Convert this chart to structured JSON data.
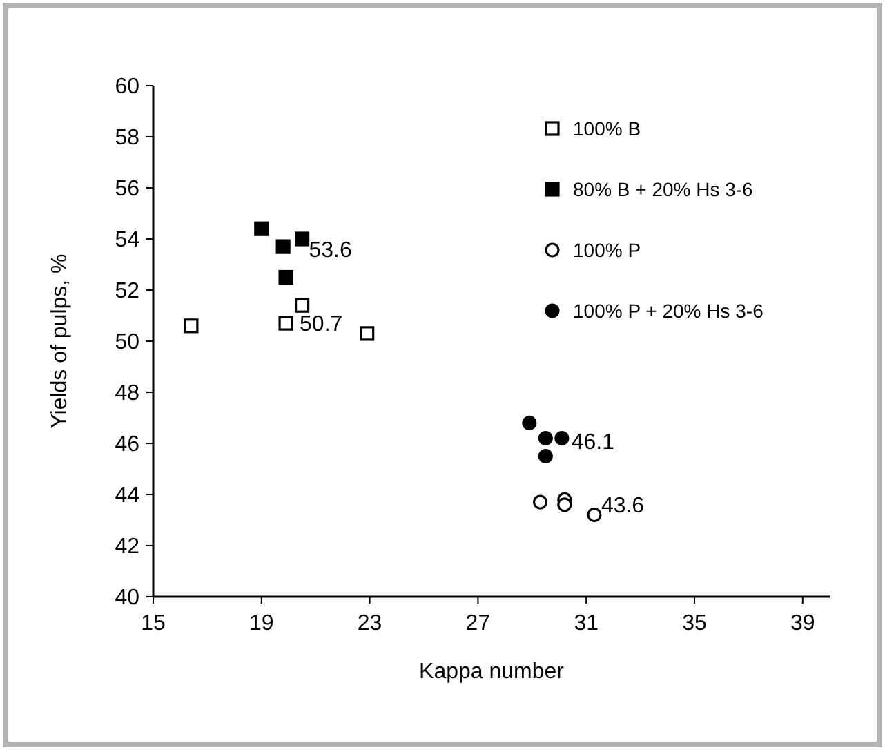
{
  "chart_data": {
    "type": "scatter",
    "xlabel": "Kappa number",
    "ylabel": "Yields of pulps, %",
    "xlim": [
      15,
      40
    ],
    "ylim": [
      40,
      60
    ],
    "xticks": [
      15,
      19,
      23,
      27,
      31,
      35,
      39
    ],
    "yticks": [
      40,
      42,
      44,
      46,
      48,
      50,
      52,
      54,
      56,
      58,
      60
    ],
    "grid": false,
    "legend": "top right",
    "series": [
      {
        "name": "100% B",
        "color": "#ffffff",
        "marker": "square",
        "x": [
          16.4,
          19.9,
          20.5,
          22.9
        ],
        "values": [
          50.6,
          50.7,
          51.4,
          50.3
        ]
      },
      {
        "name": "80% B + 20% Hs 3-6",
        "color": "#000000",
        "marker": "square",
        "x": [
          19.0,
          19.8,
          20.5,
          19.9
        ],
        "values": [
          54.4,
          53.7,
          54.0,
          52.5
        ]
      },
      {
        "name": "100% P",
        "color": "#ffffff",
        "marker": "circle",
        "x": [
          29.3,
          30.2,
          30.2,
          31.3
        ],
        "values": [
          43.7,
          43.8,
          43.6,
          43.2
        ]
      },
      {
        "name": "100% P + 20% Hs 3-6",
        "color": "#000000",
        "marker": "circle",
        "x": [
          28.9,
          29.5,
          30.1,
          29.5
        ],
        "values": [
          46.8,
          46.2,
          46.2,
          45.5
        ]
      }
    ],
    "annotations": [
      {
        "text": "53.6",
        "x": 20.6,
        "y": 53.6
      },
      {
        "text": "50.7",
        "x": 19.9,
        "y": 50.7
      },
      {
        "text": "46.1",
        "x": 30.3,
        "y": 46.1
      },
      {
        "text": "43.6",
        "x": 31.4,
        "y": 43.6
      }
    ]
  }
}
